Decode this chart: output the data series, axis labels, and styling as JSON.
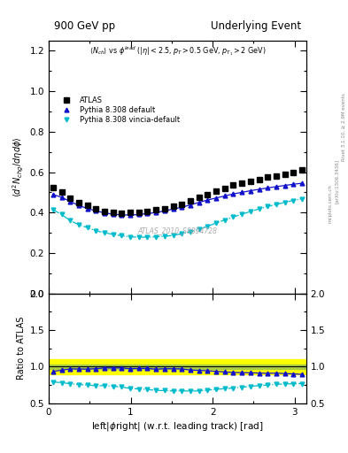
{
  "title_left": "900 GeV pp",
  "title_right": "Underlying Event",
  "ylabel_main": "\\langle d^2 N_{chg}/d\\eta d\\phi \\rangle",
  "ylabel_ratio": "Ratio to ATLAS",
  "xlabel": "left|\\phi right| (w.r.t. leading track) [rad]",
  "watermark": "ATLAS_2010_S8894728",
  "right_label1": "Rivet 3.1.10, ≥ 2.9M events",
  "right_label2": "[arXiv:1306.3436]",
  "right_label3": "mcplots.cern.ch",
  "xlim": [
    0,
    3.14159
  ],
  "ylim_main": [
    0.0,
    1.25
  ],
  "ylim_ratio": [
    0.5,
    2.0
  ],
  "atlas_x": [
    0.05,
    0.157,
    0.262,
    0.367,
    0.471,
    0.576,
    0.681,
    0.785,
    0.89,
    0.995,
    1.1,
    1.204,
    1.309,
    1.414,
    1.518,
    1.623,
    1.728,
    1.833,
    1.937,
    2.042,
    2.147,
    2.251,
    2.356,
    2.461,
    2.566,
    2.67,
    2.775,
    2.88,
    2.985,
    3.089
  ],
  "atlas_y": [
    0.525,
    0.5,
    0.47,
    0.45,
    0.435,
    0.42,
    0.405,
    0.4,
    0.395,
    0.4,
    0.4,
    0.405,
    0.415,
    0.42,
    0.43,
    0.44,
    0.46,
    0.475,
    0.49,
    0.505,
    0.52,
    0.535,
    0.545,
    0.555,
    0.565,
    0.575,
    0.58,
    0.59,
    0.6,
    0.61
  ],
  "pythia_default_x": [
    0.05,
    0.157,
    0.262,
    0.367,
    0.471,
    0.576,
    0.681,
    0.785,
    0.89,
    0.995,
    1.1,
    1.204,
    1.309,
    1.414,
    1.518,
    1.623,
    1.728,
    1.833,
    1.937,
    2.042,
    2.147,
    2.251,
    2.356,
    2.461,
    2.566,
    2.67,
    2.775,
    2.88,
    2.985,
    3.089
  ],
  "pythia_default_y": [
    0.49,
    0.475,
    0.455,
    0.435,
    0.42,
    0.408,
    0.398,
    0.392,
    0.388,
    0.388,
    0.39,
    0.395,
    0.4,
    0.408,
    0.417,
    0.426,
    0.438,
    0.45,
    0.462,
    0.472,
    0.482,
    0.492,
    0.5,
    0.508,
    0.515,
    0.522,
    0.528,
    0.534,
    0.54,
    0.545
  ],
  "pythia_vincia_x": [
    0.05,
    0.157,
    0.262,
    0.367,
    0.471,
    0.576,
    0.681,
    0.785,
    0.89,
    0.995,
    1.1,
    1.204,
    1.309,
    1.414,
    1.518,
    1.623,
    1.728,
    1.833,
    1.937,
    2.042,
    2.147,
    2.251,
    2.356,
    2.461,
    2.566,
    2.67,
    2.775,
    2.88,
    2.985,
    3.089
  ],
  "pythia_vincia_y": [
    0.415,
    0.39,
    0.36,
    0.34,
    0.325,
    0.31,
    0.3,
    0.292,
    0.285,
    0.28,
    0.278,
    0.278,
    0.28,
    0.282,
    0.287,
    0.295,
    0.305,
    0.318,
    0.332,
    0.348,
    0.363,
    0.378,
    0.392,
    0.405,
    0.418,
    0.43,
    0.44,
    0.45,
    0.46,
    0.468
  ],
  "atlas_color": "black",
  "pythia_default_color": "#1111cc",
  "pythia_vincia_color": "#00bbcc",
  "band_color_yellow": "#ffff00",
  "band_color_green": "#aacc44",
  "band_y_low": 0.9,
  "band_y_high": 1.1,
  "band_inner_y_low": 0.97,
  "band_inner_y_high": 1.03
}
